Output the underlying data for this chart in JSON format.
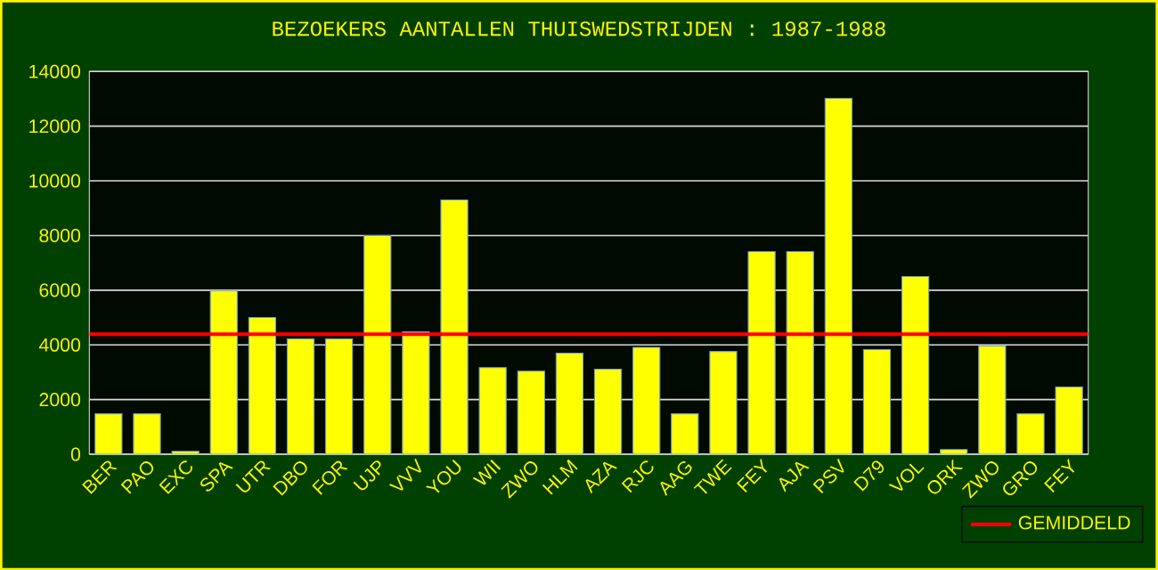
{
  "chart_data": {
    "type": "bar",
    "title": "BEZOEKERS AANTALLEN THUISWEDSTRIJDEN : 1987-1988",
    "categories": [
      "BER",
      "PAO",
      "EXC",
      "SPA",
      "UTR",
      "DBO",
      "FOR",
      "UJP",
      "VVV",
      "YOU",
      "WII",
      "ZWO",
      "HLM",
      "AZA",
      "RJC",
      "AAG",
      "TWE",
      "FEY",
      "AJA",
      "PSV",
      "D79",
      "VOL",
      "ORK",
      "ZWO",
      "GRO",
      "FEY"
    ],
    "values": [
      1480,
      1480,
      110,
      5980,
      5000,
      4220,
      4220,
      8000,
      4480,
      9300,
      3170,
      3040,
      3700,
      3110,
      3910,
      1480,
      3760,
      7410,
      7410,
      13020,
      3830,
      6500,
      170,
      3960,
      1480,
      2460
    ],
    "color": "#ffff00",
    "ylim": [
      0,
      14000
    ],
    "yticks": [
      0,
      2000,
      4000,
      6000,
      8000,
      10000,
      12000,
      14000
    ],
    "grid": "y",
    "legend": "bottom right",
    "ref_lines": [
      {
        "axis": "y",
        "value": 4390,
        "label": "GEMIDDELD",
        "color": "#ff0000"
      }
    ]
  }
}
